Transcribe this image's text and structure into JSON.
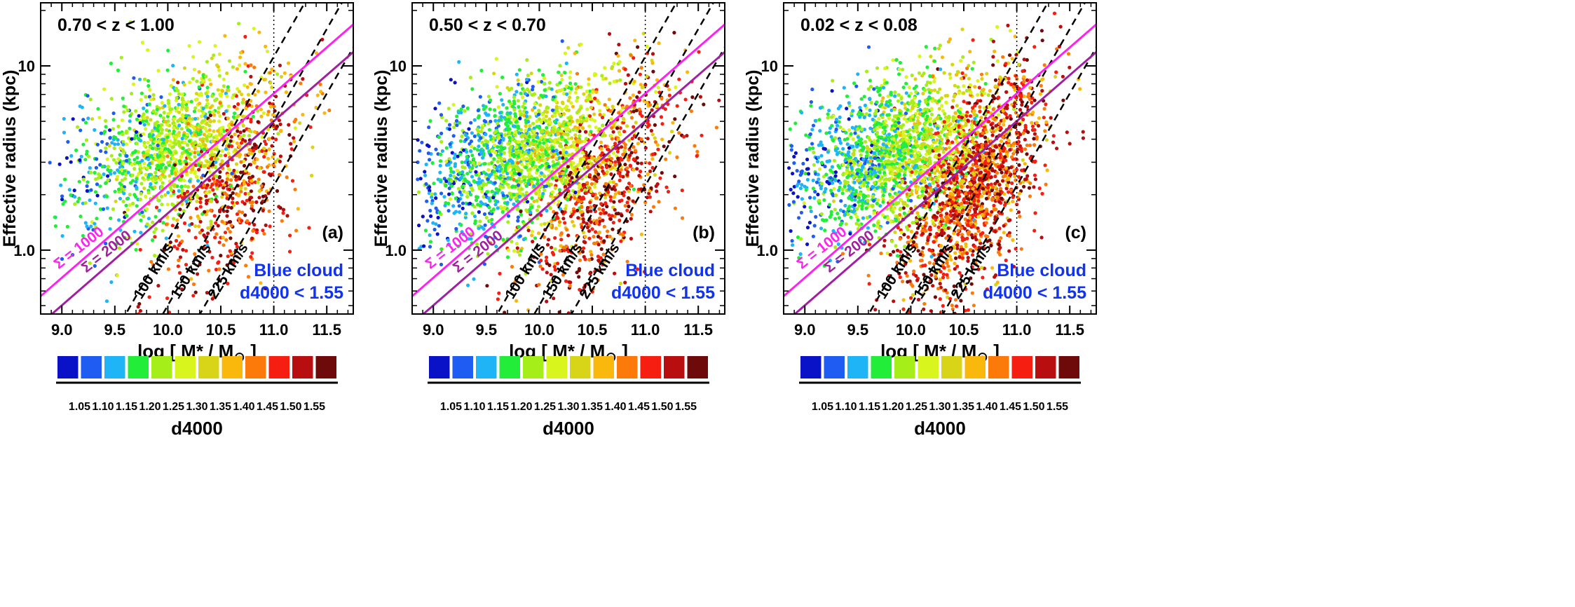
{
  "chart_data": [
    {
      "type": "scatter",
      "panel_label": "(a)",
      "redshift_label": "0.70 < z < 1.00",
      "xlabel_main": "log [ M* / M",
      "xlabel_sub": "⊙",
      "xlabel_end": " ]",
      "ylabel": "Effective radius (kpc)",
      "y_scale": "log",
      "xlim": [
        8.8,
        11.75
      ],
      "ylim": [
        0.45,
        22
      ],
      "x_ticks": [
        9.0,
        9.5,
        10.0,
        10.5,
        11.0,
        11.5
      ],
      "x_tick_labels": [
        "9.0",
        "9.5",
        "10.0",
        "10.5",
        "11.0",
        "11.5"
      ],
      "y_ticks": [
        1.0,
        10
      ],
      "y_tick_labels": [
        "1.0",
        "10"
      ],
      "vertical_dotted_line_x": 11.0,
      "density": 0.55,
      "mass_center": 10.2,
      "red_fraction": 0.3,
      "surface_density_lines": [
        {
          "label": "Σ = 1000",
          "intercept_logR_at_logM10": 0.35,
          "slope": 0.5,
          "color": "#ff22ee"
        },
        {
          "label": "Σ = 2000",
          "intercept_logR_at_logM10": 0.2,
          "slope": 0.5,
          "color": "#a020a0"
        }
      ],
      "velocity_dispersion_lines": [
        {
          "label": "100 km/s",
          "logM_at_R1": 9.95,
          "slope": 1.0
        },
        {
          "label": "150 km/s",
          "logM_at_R1": 10.3,
          "slope": 1.0
        },
        {
          "label": "225 km/s",
          "logM_at_R1": 10.65,
          "slope": 1.0
        }
      ],
      "annotation_line1": "Blue cloud",
      "annotation_line2": "d4000 < 1.55"
    },
    {
      "type": "scatter",
      "panel_label": "(b)",
      "redshift_label": "0.50 < z < 0.70",
      "xlabel_main": "log [ M* / M",
      "xlabel_sub": "⊙",
      "xlabel_end": " ]",
      "ylabel": "Effective radius (kpc)",
      "y_scale": "log",
      "xlim": [
        8.8,
        11.75
      ],
      "ylim": [
        0.45,
        22
      ],
      "x_ticks": [
        9.0,
        9.5,
        10.0,
        10.5,
        11.0,
        11.5
      ],
      "x_tick_labels": [
        "9.0",
        "9.5",
        "10.0",
        "10.5",
        "11.0",
        "11.5"
      ],
      "y_ticks": [
        1.0,
        10
      ],
      "y_tick_labels": [
        "1.0",
        "10"
      ],
      "vertical_dotted_line_x": 11.0,
      "density": 0.75,
      "mass_center": 10.0,
      "red_fraction": 0.3,
      "surface_density_lines": [
        {
          "label": "Σ = 1000",
          "intercept_logR_at_logM10": 0.35,
          "slope": 0.5,
          "color": "#ff22ee"
        },
        {
          "label": "Σ = 2000",
          "intercept_logR_at_logM10": 0.2,
          "slope": 0.5,
          "color": "#a020a0"
        }
      ],
      "velocity_dispersion_lines": [
        {
          "label": "100 km/s",
          "logM_at_R1": 9.95,
          "slope": 1.0
        },
        {
          "label": "150 km/s",
          "logM_at_R1": 10.3,
          "slope": 1.0
        },
        {
          "label": "225 km/s",
          "logM_at_R1": 10.65,
          "slope": 1.0
        }
      ],
      "annotation_line1": "Blue cloud",
      "annotation_line2": "d4000 < 1.55"
    },
    {
      "type": "scatter",
      "panel_label": "(c)",
      "redshift_label": "0.02 < z < 0.08",
      "xlabel_main": "log [ M* / M",
      "xlabel_sub": "⊙",
      "xlabel_end": " ]",
      "ylabel": "Effective radius (kpc)",
      "y_scale": "log",
      "xlim": [
        8.8,
        11.75
      ],
      "ylim": [
        0.45,
        22
      ],
      "x_ticks": [
        9.0,
        9.5,
        10.0,
        10.5,
        11.0,
        11.5
      ],
      "x_tick_labels": [
        "9.0",
        "9.5",
        "10.0",
        "10.5",
        "11.0",
        "11.5"
      ],
      "y_ticks": [
        1.0,
        10
      ],
      "y_tick_labels": [
        "1.0",
        "10"
      ],
      "vertical_dotted_line_x": 11.0,
      "density": 1.0,
      "mass_center": 10.0,
      "red_fraction": 0.45,
      "surface_density_lines": [
        {
          "label": "Σ = 1000",
          "intercept_logR_at_logM10": 0.35,
          "slope": 0.5,
          "color": "#ff22ee"
        },
        {
          "label": "Σ = 2000",
          "intercept_logR_at_logM10": 0.2,
          "slope": 0.5,
          "color": "#a020a0"
        }
      ],
      "velocity_dispersion_lines": [
        {
          "label": "100 km/s",
          "logM_at_R1": 9.95,
          "slope": 1.0
        },
        {
          "label": "150 km/s",
          "logM_at_R1": 10.3,
          "slope": 1.0
        },
        {
          "label": "225 km/s",
          "logM_at_R1": 10.65,
          "slope": 1.0
        }
      ],
      "annotation_line1": "Blue cloud",
      "annotation_line2": "d4000 < 1.55"
    }
  ],
  "colorbar": {
    "title": "d4000",
    "tick_labels": [
      "1.05",
      "1.10",
      "1.15",
      "1.20",
      "1.25",
      "1.30",
      "1.35",
      "1.40",
      "1.45",
      "1.50",
      "1.55"
    ],
    "colors": [
      "#0a12c8",
      "#1f5cf2",
      "#1fb4f5",
      "#22ee3a",
      "#a6ee1a",
      "#d8f51e",
      "#d8d418",
      "#fbb80c",
      "#fb7a0a",
      "#f51e10",
      "#b80e10",
      "#6e0a0a"
    ]
  },
  "annotation_color": "#1133ee"
}
